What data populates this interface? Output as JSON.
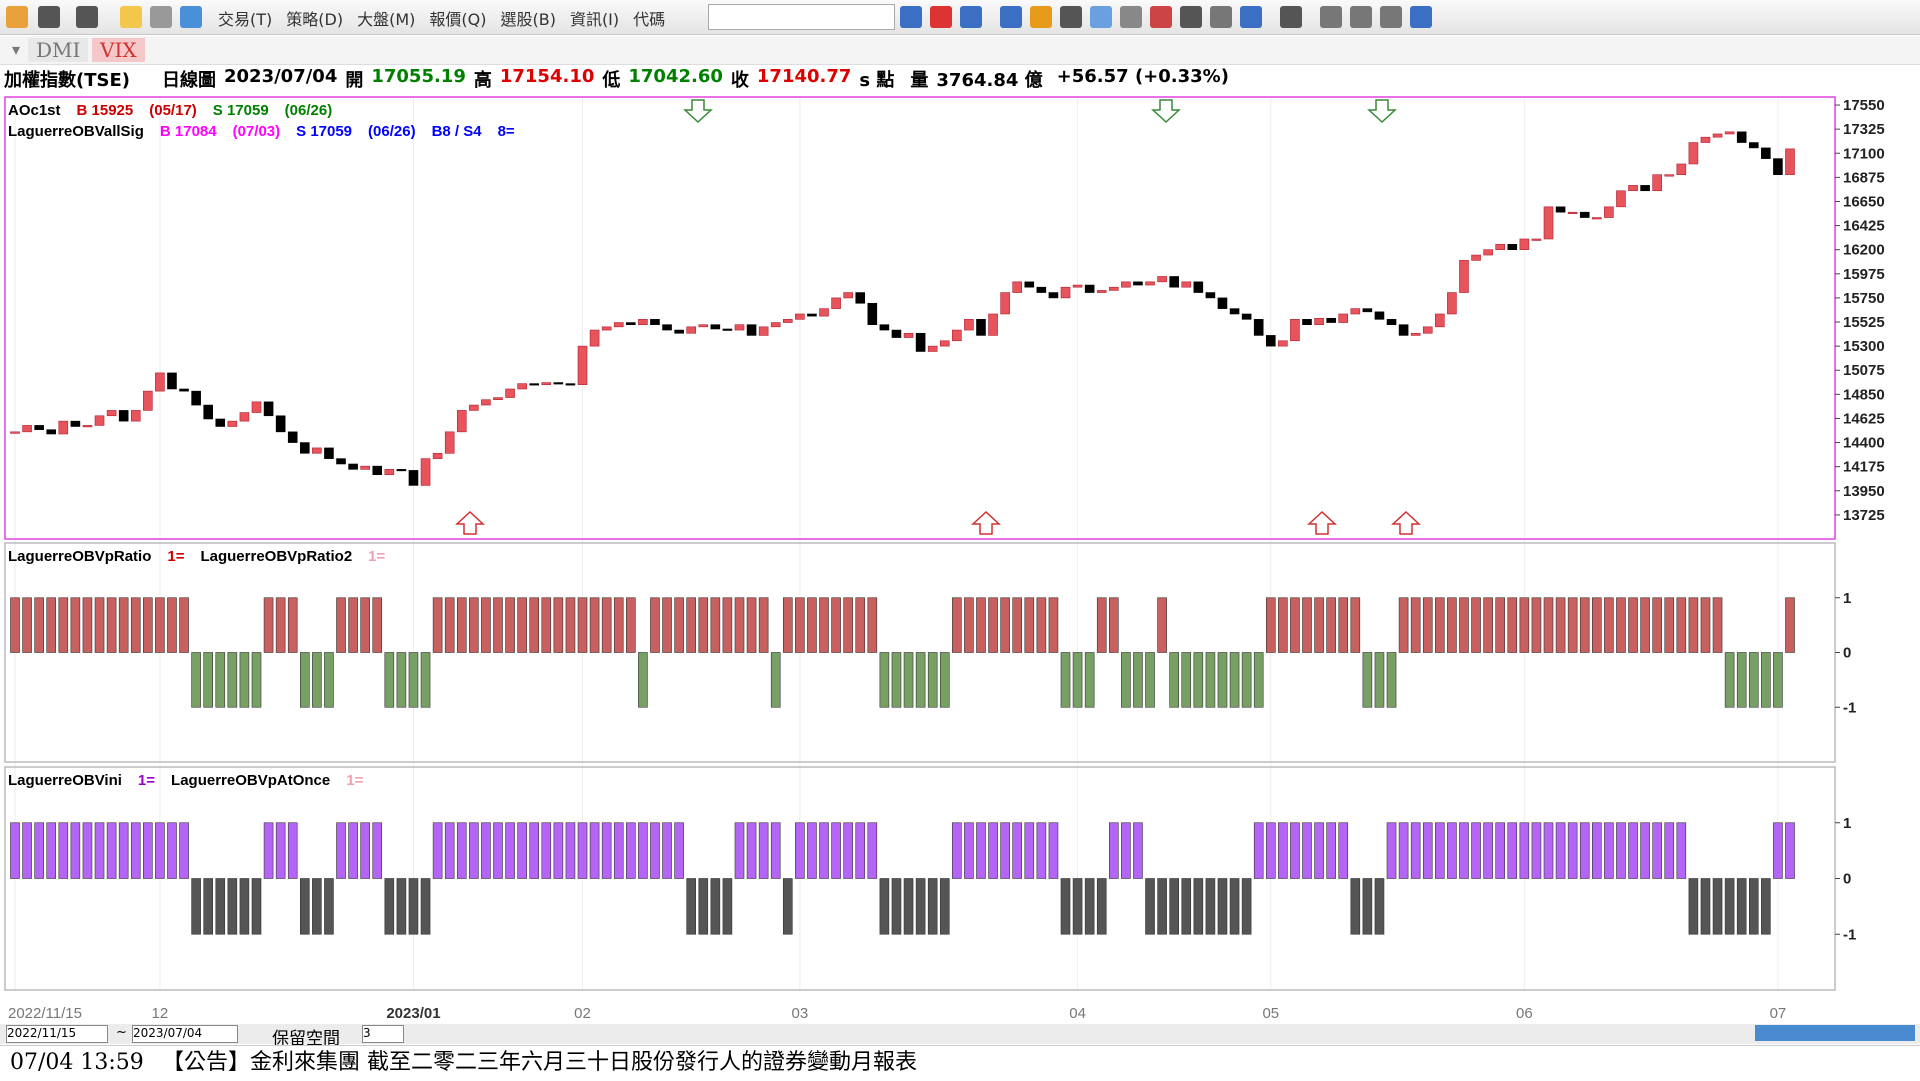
{
  "toolbar": {
    "menus": [
      "交易(T)",
      "策略(D)",
      "大盤(M)",
      "報價(Q)",
      "選股(B)",
      "資訊(I)",
      "代碼"
    ]
  },
  "tabs": [
    "DMI",
    "VIX"
  ],
  "quote": {
    "name": "加權指數(TSE)",
    "period": "日線圖",
    "date": "2023/07/04",
    "open_label": "開",
    "open": "17055.19",
    "high_label": "高",
    "high": "17154.10",
    "low_label": "低",
    "low": "17042.60",
    "close_label": "收",
    "close": "17140.77",
    "unit": "s 點",
    "volume_label": "量",
    "volume": "3764.84 億",
    "change": "+56.57 (+0.33%)"
  },
  "chart_data": [
    {
      "type": "candlestick",
      "up_color": "#e8545c",
      "down_color": "#000000",
      "legend": [
        [
          {
            "text": "AOc1st",
            "color": "#000000"
          },
          {
            "text": "B 15925",
            "color": "#cc0000"
          },
          {
            "text": "(05/17)",
            "color": "#cc0000"
          },
          {
            "text": "S 17059",
            "color": "#008000"
          },
          {
            "text": "(06/26)",
            "color": "#008000"
          }
        ],
        [
          {
            "text": "LaguerreOBVallSig",
            "color": "#000000"
          },
          {
            "text": "B 17084",
            "color": "#ff00ff"
          },
          {
            "text": "(07/03)",
            "color": "#ff00ff"
          },
          {
            "text": "S 17059",
            "color": "#0000ff"
          },
          {
            "text": "(06/26)",
            "color": "#0000ff"
          },
          {
            "text": "B8 / S4",
            "color": "#0000ff"
          },
          {
            "text": "8=",
            "color": "#0000ff"
          }
        ]
      ],
      "xticks": [
        {
          "value": 0,
          "label": "2022/11/15"
        },
        {
          "value": 12,
          "label": "12"
        },
        {
          "value": 33,
          "label": "2023/01"
        },
        {
          "value": 47,
          "label": "02"
        },
        {
          "value": 65,
          "label": "03"
        },
        {
          "value": 88,
          "label": "04"
        },
        {
          "value": 104,
          "label": "05"
        },
        {
          "value": 125,
          "label": "06"
        },
        {
          "value": 146,
          "label": "07"
        }
      ],
      "ylim": [
        13500,
        17625
      ],
      "yticks": [
        17550,
        17325,
        17100,
        16875,
        16650,
        16425,
        16200,
        15975,
        15750,
        15525,
        15300,
        15075,
        14850,
        14625,
        14400,
        14175,
        13950,
        13725
      ],
      "values": [
        14500,
        14560,
        14520,
        14480,
        14600,
        14550,
        14560,
        14650,
        14700,
        14600,
        14700,
        14880,
        15050,
        14900,
        14880,
        14750,
        14620,
        14550,
        14600,
        14680,
        14780,
        14650,
        14500,
        14400,
        14300,
        14350,
        14250,
        14200,
        14150,
        14180,
        14100,
        14150,
        14140,
        14000,
        14250,
        14300,
        14500,
        14700,
        14750,
        14800,
        14820,
        14900,
        14950,
        14940,
        14960,
        14950,
        14940,
        15300,
        15450,
        15480,
        15520,
        15500,
        15550,
        15500,
        15450,
        15420,
        15480,
        15500,
        15460,
        15450,
        15500,
        15400,
        15480,
        15520,
        15550,
        15600,
        15580,
        15650,
        15750,
        15800,
        15700,
        15500,
        15450,
        15380,
        15420,
        15250,
        15300,
        15350,
        15450,
        15550,
        15400,
        15600,
        15800,
        15900,
        15850,
        15800,
        15750,
        15850,
        15870,
        15800,
        15820,
        15850,
        15900,
        15870,
        15900,
        15950,
        15850,
        15900,
        15800,
        15750,
        15650,
        15600,
        15550,
        15400,
        15300,
        15350,
        15550,
        15500,
        15560,
        15520,
        15600,
        15650,
        15620,
        15550,
        15500,
        15400,
        15420,
        15480,
        15600,
        15800,
        16100,
        16150,
        16200,
        16250,
        16200,
        16300,
        16300,
        16600,
        16550,
        16550,
        16500,
        16500,
        16600,
        16750,
        16800,
        16750,
        16900,
        16900,
        17000,
        17200,
        17250,
        17280,
        17300,
        17200,
        17150,
        17050,
        16900,
        17140.77
      ]
    },
    {
      "type": "bar",
      "up_color": "#c8605f",
      "down_color": "#78a064",
      "legend": [
        {
          "text": "LaguerreOBVpRatio",
          "color": "#000000"
        },
        {
          "text": "1=",
          "color": "#cc0000"
        },
        {
          "text": "LaguerreOBVpRatio2",
          "color": "#000000"
        },
        {
          "text": "1=",
          "color": "#f0a0b0"
        }
      ],
      "ylim": [
        -2,
        2
      ],
      "yticks": [
        1,
        0,
        -1
      ],
      "values": [
        1,
        1,
        1,
        1,
        1,
        1,
        1,
        1,
        1,
        1,
        1,
        1,
        1,
        1,
        1,
        -1,
        -1,
        -1,
        -1,
        -1,
        -1,
        1,
        1,
        1,
        -1,
        -1,
        -1,
        1,
        1,
        1,
        1,
        -1,
        -1,
        -1,
        -1,
        1,
        1,
        1,
        1,
        1,
        1,
        1,
        1,
        1,
        1,
        1,
        1,
        1,
        1,
        1,
        1,
        1,
        -1,
        1,
        1,
        1,
        1,
        1,
        1,
        1,
        1,
        1,
        1,
        -1,
        1,
        1,
        1,
        1,
        1,
        1,
        1,
        1,
        -1,
        -1,
        -1,
        -1,
        -1,
        -1,
        1,
        1,
        1,
        1,
        1,
        1,
        1,
        1,
        1,
        -1,
        -1,
        -1,
        1,
        1,
        -1,
        -1,
        -1,
        1,
        -1,
        -1,
        -1,
        -1,
        -1,
        -1,
        -1,
        -1,
        1,
        1,
        1,
        1,
        1,
        1,
        1,
        1,
        -1,
        -1,
        -1,
        1,
        1,
        1,
        1,
        1,
        1,
        1,
        1,
        1,
        1,
        1,
        1,
        1,
        1,
        1,
        1,
        1,
        1,
        1,
        1,
        1,
        1,
        1,
        1,
        1,
        1,
        1,
        -1,
        -1,
        -1,
        -1,
        -1,
        1
      ]
    },
    {
      "type": "bar",
      "up_color": "#b565f5",
      "down_color": "#555555",
      "legend": [
        {
          "text": "LaguerreOBVini",
          "color": "#000000"
        },
        {
          "text": "1=",
          "color": "#9900cc"
        },
        {
          "text": "LaguerreOBVpAtOnce",
          "color": "#000000"
        },
        {
          "text": "1=",
          "color": "#f0a0b0"
        }
      ],
      "ylim": [
        -2,
        2
      ],
      "yticks": [
        1,
        0,
        -1
      ],
      "values": [
        1,
        1,
        1,
        1,
        1,
        1,
        1,
        1,
        1,
        1,
        1,
        1,
        1,
        1,
        1,
        -1,
        -1,
        -1,
        -1,
        -1,
        -1,
        1,
        1,
        1,
        -1,
        -1,
        -1,
        1,
        1,
        1,
        1,
        -1,
        -1,
        -1,
        -1,
        1,
        1,
        1,
        1,
        1,
        1,
        1,
        1,
        1,
        1,
        1,
        1,
        1,
        1,
        1,
        1,
        1,
        1,
        1,
        1,
        1,
        -1,
        -1,
        -1,
        -1,
        1,
        1,
        1,
        1,
        -1,
        1,
        1,
        1,
        1,
        1,
        1,
        1,
        -1,
        -1,
        -1,
        -1,
        -1,
        -1,
        1,
        1,
        1,
        1,
        1,
        1,
        1,
        1,
        1,
        -1,
        -1,
        -1,
        -1,
        1,
        1,
        1,
        -1,
        -1,
        -1,
        -1,
        -1,
        -1,
        -1,
        -1,
        -1,
        1,
        1,
        1,
        1,
        1,
        1,
        1,
        1,
        -1,
        -1,
        -1,
        1,
        1,
        1,
        1,
        1,
        1,
        1,
        1,
        1,
        1,
        1,
        1,
        1,
        1,
        1,
        1,
        1,
        1,
        1,
        1,
        1,
        1,
        1,
        1,
        1,
        -1,
        -1,
        -1,
        -1,
        -1,
        -1,
        -1,
        1,
        1
      ]
    }
  ],
  "controls": {
    "start": "2022/11/15",
    "tilde": "~",
    "end": "2023/07/04",
    "reserve": "保留空間",
    "reserve_value": "3"
  },
  "news": {
    "time": "07/04 13:59",
    "text": "【公告】金利來集團 截至二零二三年六月三十日股份發行人的證券變動月報表"
  }
}
